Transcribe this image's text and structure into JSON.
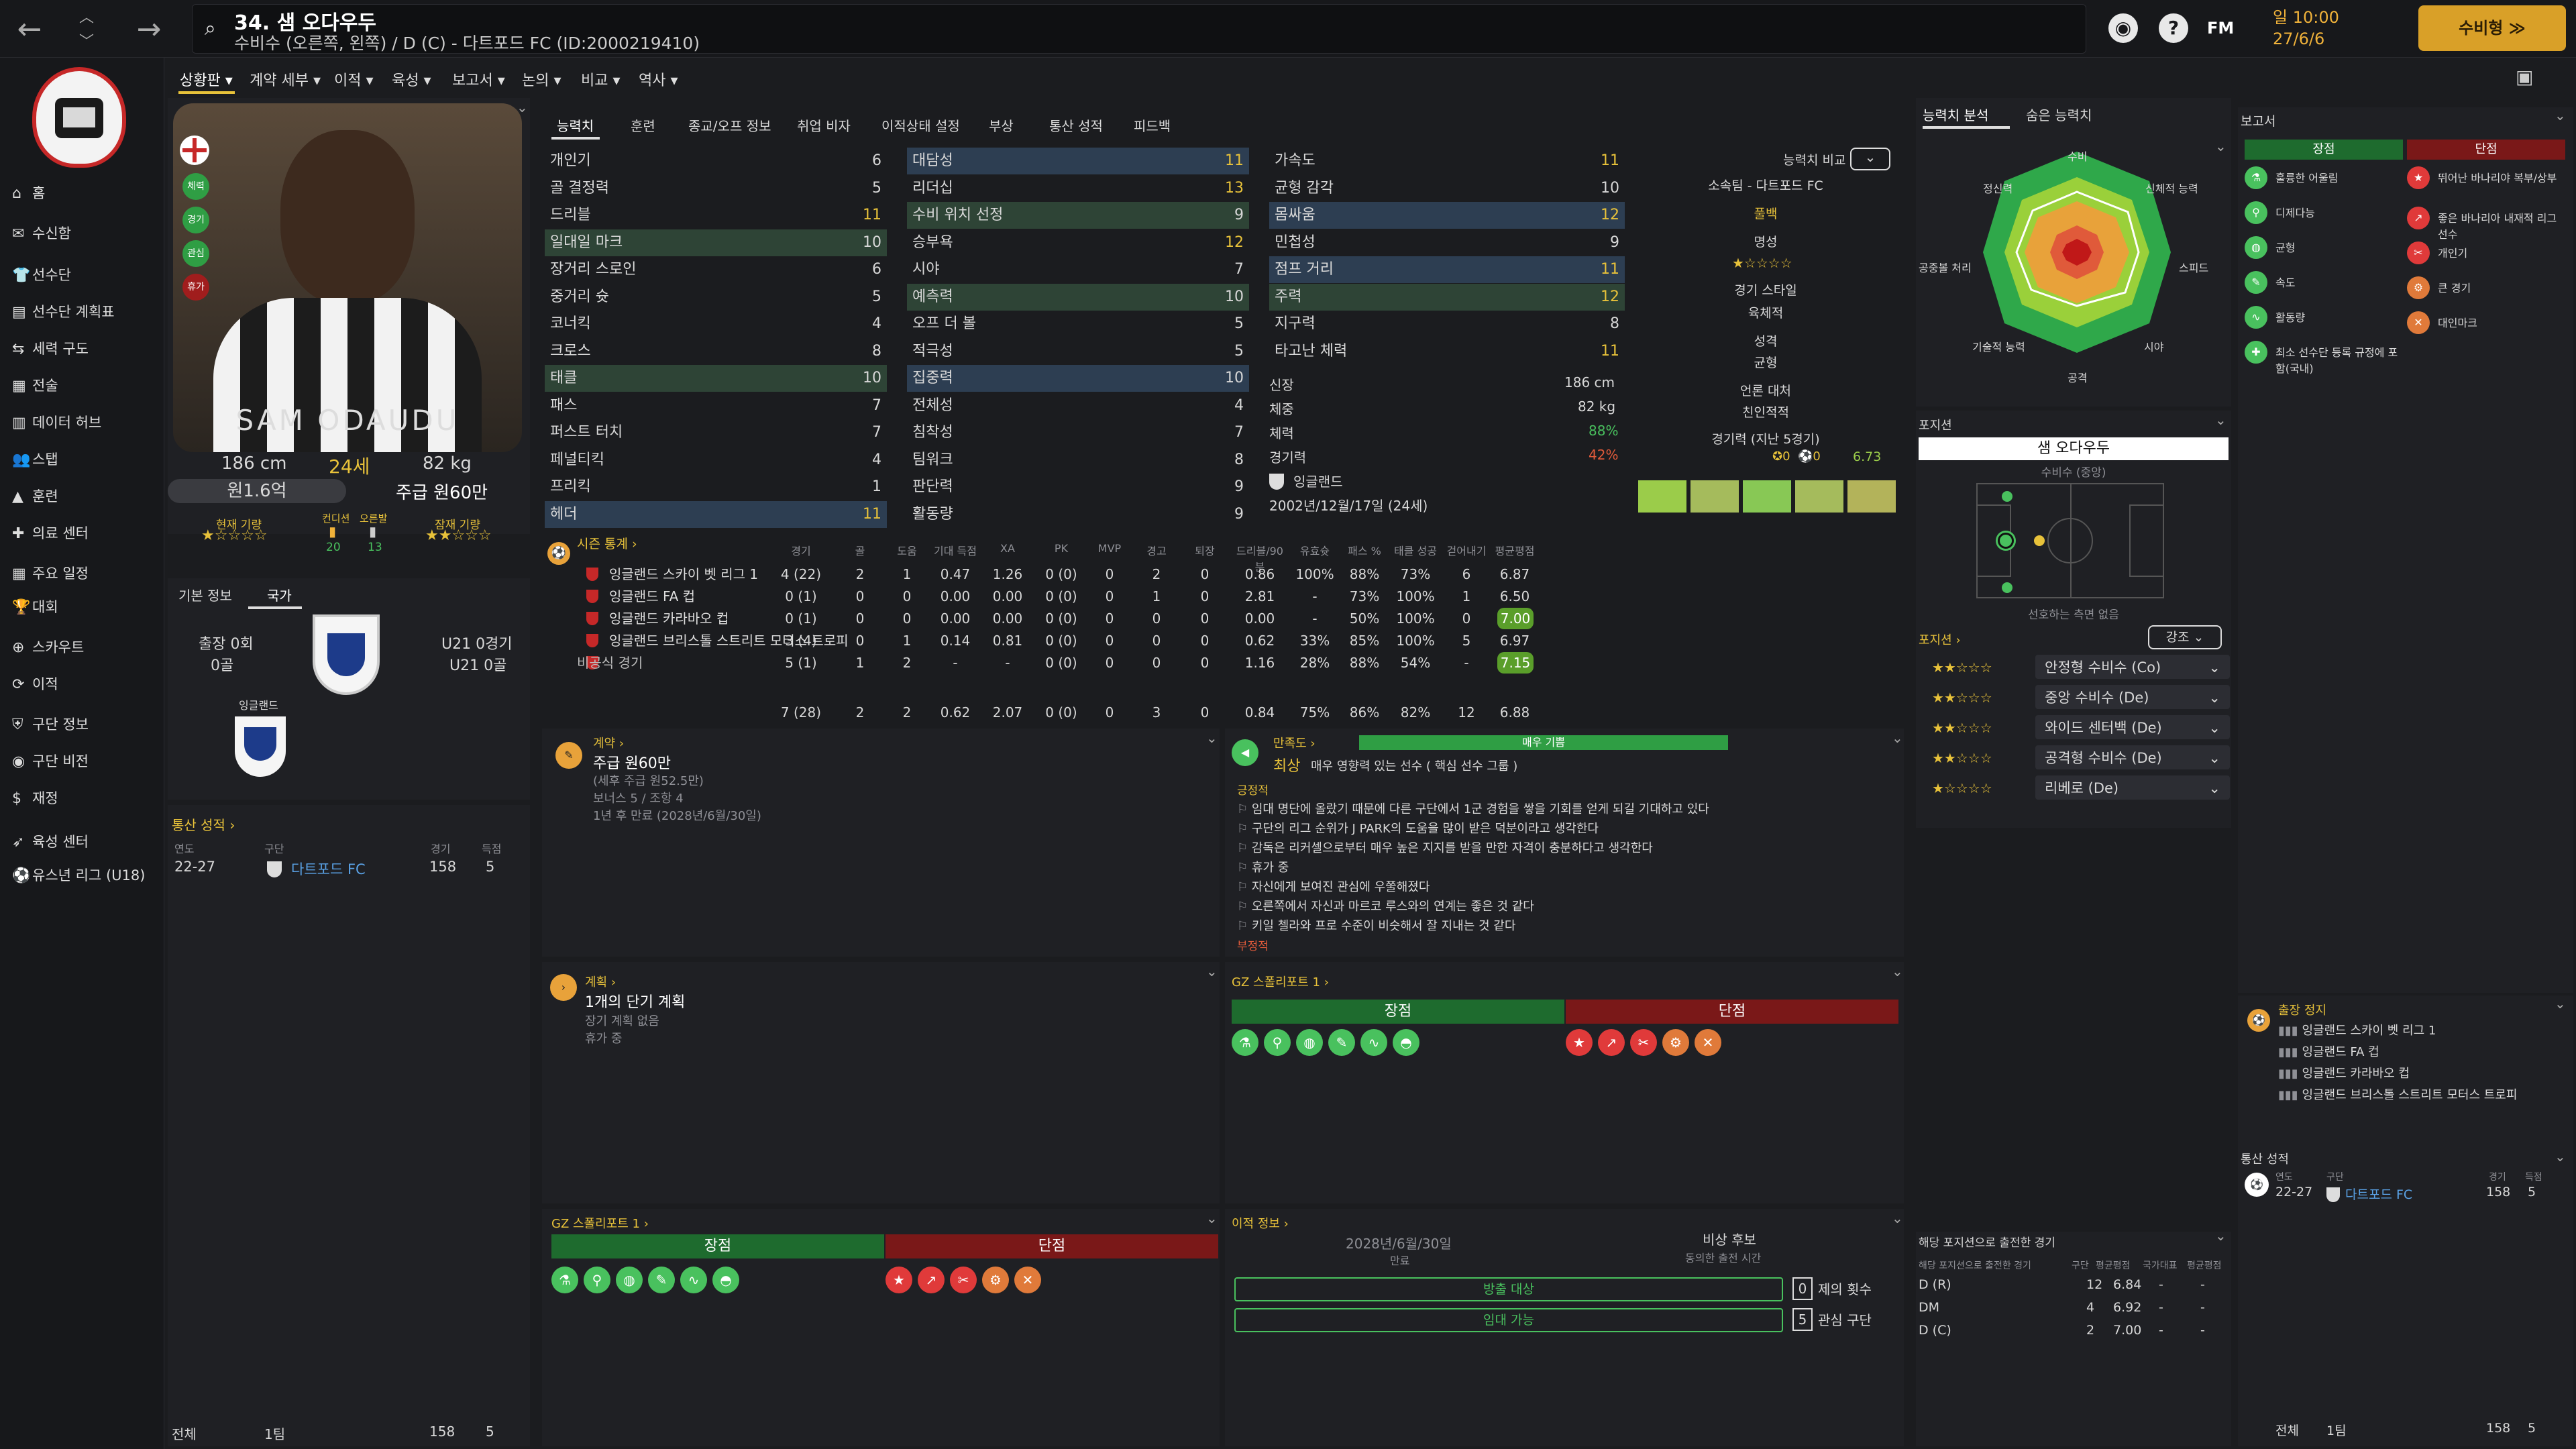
{
  "header": {
    "player_name": "34. 샘 오다우두",
    "player_desc": "수비수 (오른쪽, 왼쪽) / D (C) - 다트포드 FC (ID:2000219410)",
    "fm_label": "FM",
    "date_day": "일 10:00",
    "date": "27/6/6",
    "continue_label": "수비형 ≫"
  },
  "sidebar": {
    "items": [
      {
        "label": "홈",
        "icon": "⌂"
      },
      {
        "label": "수신함",
        "icon": "✉"
      },
      {
        "label": "선수단",
        "icon": "👕"
      },
      {
        "label": "선수단 계획표",
        "icon": "▤"
      },
      {
        "label": "세력 구도",
        "icon": "⇆"
      },
      {
        "label": "전술",
        "icon": "▦"
      },
      {
        "label": "데이터 허브",
        "icon": "▥"
      },
      {
        "label": "스탭",
        "icon": "👥"
      },
      {
        "label": "훈련",
        "icon": "▲"
      },
      {
        "label": "의료 센터",
        "icon": "✚"
      },
      {
        "label": "주요 일정",
        "icon": "▦"
      },
      {
        "label": "대회",
        "icon": "🏆"
      },
      {
        "label": "스카우트",
        "icon": "⊕"
      },
      {
        "label": "이적",
        "icon": "⟳"
      },
      {
        "label": "구단 정보",
        "icon": "⛨"
      },
      {
        "label": "구단 비전",
        "icon": "◉"
      },
      {
        "label": "재정",
        "icon": "$"
      },
      {
        "label": "육성 센터",
        "icon": "➶"
      },
      {
        "label": "유스년 리그 (U18)",
        "icon": "⚽"
      }
    ]
  },
  "subtabs": [
    "상황판 ▾",
    "계약 세부 ▾",
    "이적 ▾",
    "육성 ▾",
    "보고서 ▾",
    "논의 ▾",
    "비교 ▾",
    "역사 ▾"
  ],
  "profile": {
    "photo_name": "SAM ODAUDU",
    "height": "186 cm",
    "age": "24세",
    "weight": "82 kg",
    "value": "원1.6억",
    "wage": "주급 원60만",
    "current_ability": "현재 기량",
    "condition": "컨디션",
    "sharpness": "오른발",
    "cond_val": "20",
    "sharp_val": "13",
    "potential": "잠재 기량",
    "badges": [
      "체력",
      "경기",
      "관심",
      "휴가"
    ]
  },
  "nation": {
    "tab1": "기본 정보",
    "tab2": "국가",
    "apps": "출장 0회",
    "goals": "0골",
    "u21_apps": "U21 0경기",
    "u21_goals": "U21 0골",
    "nation_name": "잉글랜드"
  },
  "career_left": {
    "title": "통산 성적 ›",
    "h_year": "연도",
    "h_club": "구단",
    "h_apps": "경기",
    "h_goals": "득점",
    "year": "22-27",
    "club": "다트포드 FC",
    "apps": "158",
    "goals": "5",
    "total": "전체",
    "teams": "1팀",
    "total_apps": "158",
    "total_goals": "5"
  },
  "attr_tabs": [
    "능력치",
    "훈련",
    "종교/오프 정보",
    "취업 비자",
    "이적상태 설정",
    "부상",
    "통산 성적",
    "피드백"
  ],
  "attributes": {
    "technical": [
      {
        "n": "개인기",
        "v": "6"
      },
      {
        "n": "골 결정력",
        "v": "5"
      },
      {
        "n": "드리블",
        "v": "11"
      },
      {
        "n": "일대일 마크",
        "v": "10"
      },
      {
        "n": "장거리 스로인",
        "v": "6"
      },
      {
        "n": "중거리 슛",
        "v": "5"
      },
      {
        "n": "코너킥",
        "v": "4"
      },
      {
        "n": "크로스",
        "v": "8"
      },
      {
        "n": "태클",
        "v": "10"
      },
      {
        "n": "패스",
        "v": "7"
      },
      {
        "n": "퍼스트 터치",
        "v": "7"
      },
      {
        "n": "페널티킥",
        "v": "4"
      },
      {
        "n": "프리킥",
        "v": "1"
      },
      {
        "n": "헤더",
        "v": "11"
      }
    ],
    "mental": [
      {
        "n": "대담성",
        "v": "11"
      },
      {
        "n": "리더십",
        "v": "13"
      },
      {
        "n": "수비 위치 선정",
        "v": "9"
      },
      {
        "n": "승부욕",
        "v": "12"
      },
      {
        "n": "시야",
        "v": "7"
      },
      {
        "n": "예측력",
        "v": "10"
      },
      {
        "n": "오프 더 볼",
        "v": "5"
      },
      {
        "n": "적극성",
        "v": "5"
      },
      {
        "n": "집중력",
        "v": "10"
      },
      {
        "n": "전체성",
        "v": "4"
      },
      {
        "n": "침착성",
        "v": "7"
      },
      {
        "n": "팀워크",
        "v": "8"
      },
      {
        "n": "판단력",
        "v": "9"
      },
      {
        "n": "활동량",
        "v": "9"
      }
    ],
    "physical": [
      {
        "n": "가속도",
        "v": "11"
      },
      {
        "n": "균형 감각",
        "v": "10"
      },
      {
        "n": "몸싸움",
        "v": "12"
      },
      {
        "n": "민첩성",
        "v": "9"
      },
      {
        "n": "점프 거리",
        "v": "11"
      },
      {
        "n": "주력",
        "v": "12"
      },
      {
        "n": "지구력",
        "v": "8"
      },
      {
        "n": "타고난 체력",
        "v": "11"
      }
    ]
  },
  "info": {
    "compare": "능력치 비교",
    "club": "소속팀 - 다트포드 FC",
    "role": "풀백",
    "rep": "명성",
    "style": "경기 스타일",
    "style_val": "육체적",
    "personality": "성격",
    "personality_val": "균형",
    "media": "언론 대처",
    "media_val": "친인적적",
    "recent": "경기력 (지난 5경기)",
    "rating": "6.73",
    "height_l": "신장",
    "height_v": "186 cm",
    "weight_l": "체중",
    "weight_v": "82 kg",
    "fitness_l": "체력",
    "fitness_v": "88%",
    "match_l": "경기력",
    "match_v": "42%",
    "nationality": "잉글랜드",
    "dob": "2002년/12월/17일 (24세)"
  },
  "stats": {
    "title": "시즌 통계 ›",
    "headers": [
      "경기",
      "골",
      "도움",
      "기대 득점",
      "XA",
      "PK",
      "MVP",
      "경고",
      "퇴장",
      "드리블/90분",
      "유효슛",
      "패스 %",
      "태클 성공",
      "걷어내기",
      "평균평점"
    ],
    "rows": [
      {
        "c": "잉글랜드 스카이 벳 리그 1",
        "v": [
          "4 (22)",
          "2",
          "1",
          "0.47",
          "1.26",
          "0 (0)",
          "0",
          "2",
          "0",
          "0.86",
          "100%",
          "88%",
          "73%",
          "6",
          "6.87"
        ]
      },
      {
        "c": "잉글랜드 FA 컵",
        "v": [
          "0 (1)",
          "0",
          "0",
          "0.00",
          "0.00",
          "0 (0)",
          "0",
          "1",
          "0",
          "2.81",
          "-",
          "73%",
          "100%",
          "1",
          "6.50"
        ]
      },
      {
        "c": "잉글랜드 카라바오 컵",
        "v": [
          "0 (1)",
          "0",
          "0",
          "0.00",
          "0.00",
          "0 (0)",
          "0",
          "0",
          "0",
          "0.00",
          "-",
          "50%",
          "100%",
          "0",
          "7.00"
        ]
      },
      {
        "c": "잉글랜드 브리스톨 스트리트 모터스 트로피",
        "v": [
          "3 (4)",
          "0",
          "1",
          "0.14",
          "0.81",
          "0 (0)",
          "0",
          "0",
          "0",
          "0.62",
          "33%",
          "85%",
          "100%",
          "5",
          "6.97"
        ]
      },
      {
        "c": "비공식 경기",
        "v": [
          "5 (1)",
          "1",
          "2",
          "-",
          "-",
          "0 (0)",
          "0",
          "0",
          "0",
          "1.16",
          "28%",
          "88%",
          "54%",
          "-",
          "7.15"
        ]
      }
    ],
    "total": [
      "7 (28)",
      "2",
      "2",
      "0.62",
      "2.07",
      "0 (0)",
      "0",
      "3",
      "0",
      "0.84",
      "75%",
      "86%",
      "82%",
      "12",
      "6.88"
    ]
  },
  "contract": {
    "title": "계약 ›",
    "wage": "주급 원60만",
    "detail": "(세후 주급 원52.5만)",
    "bonus": "보너스 5 / 조항 4",
    "expiry": "1년 후 만료 (2028년/6월/30일)"
  },
  "satisfaction": {
    "title": "만족도 ›",
    "bar": "매우 기쁨",
    "status": "최상",
    "desc": "매우 영향력 있는 선수 ( 핵심 선수 그룹 )",
    "positive": "긍정적",
    "items": [
      "임대 명단에 올랐기 때문에 다른 구단에서 1군 경험을 쌓을 기회를 얻게 되길 기대하고 있다",
      "구단의 리그 순위가 J PARK의 도움을 많이 받은 덕분이라고 생각한다",
      "감독은 리커셀으로부터 매우 높은 지지를 받을 만한 자격이 충분하다고 생각한다",
      "휴가 중",
      "자신에게 보여진 관심에 우쭐해졌다",
      "오른쪽에서 자신과 마르코 루스와의 연계는 좋은 것 같다",
      "키일 첼라와 프로 수준이 비슷해서 잘 지내는 것 같다"
    ],
    "negative": "부정적"
  },
  "plan": {
    "title": "계획 ›",
    "main": "1개의 단기 계획",
    "l1": "장기 계획 없음",
    "l2": "휴가 중"
  },
  "scout1": {
    "title": "GZ 스폴리포트 1 ›",
    "strengths": "장점",
    "weaknesses": "단점"
  },
  "scout2": {
    "title": "GZ 스폴리포트 1 ›",
    "strengths": "장점",
    "weaknesses": "단점"
  },
  "transfer": {
    "title": "이적 정보 ›",
    "expiry": "2028년/6월/30일",
    "expiry_l": "만료",
    "status": "비상 후보",
    "status_l": "동의한 출전 시간",
    "offer": "방출 대상",
    "loan": "임대 가능",
    "n1": "0",
    "n1_l": "제의 횟수",
    "n2": "5",
    "n2_l": "관심 구단"
  },
  "analysis": {
    "tab1": "능력치 분석",
    "tab2": "숨은 능력치",
    "labels": [
      "수비",
      "신체적 능력",
      "스피드",
      "시야",
      "공격",
      "기술적 능력",
      "공중볼 처리",
      "정신력"
    ]
  },
  "position": {
    "title": "포지션",
    "name": "샘 오다우두",
    "role": "수비수 (중앙)",
    "note": "선호하는 측면 없음",
    "list_title": "포지션 ›",
    "focus": "강조",
    "roles": [
      "안정형 수비수 (Co)",
      "중앙 수비수 (De)",
      "와이드 센터백 (De)",
      "공격형 수비수 (De)",
      "리베로 (De)"
    ]
  },
  "pos_apps": {
    "title": "해당 포지션으로 출전한 경기",
    "h": [
      "해당 포지션으로 출전한 경기",
      "구단",
      "평균평점",
      "국가대표",
      "평균평점"
    ],
    "rows": [
      {
        "p": "D (R)",
        "a": "12",
        "r": "6.84"
      },
      {
        "p": "DM",
        "a": "4",
        "r": "6.92"
      },
      {
        "p": "D (C)",
        "a": "2",
        "r": "7.00"
      }
    ]
  },
  "report": {
    "title": "보고서",
    "strengths": "장점",
    "weaknesses": "단점",
    "s_items": [
      "훌륭한 어울림",
      "디제다능",
      "균형",
      "속도",
      "활동량",
      "최소 선수단 등록 규정에 포함(국내)"
    ],
    "w_items": [
      "뛰어난 바나리야 복부/상부",
      "좋은 바나리아 내재적 리그 선수",
      "개인기",
      "큰 경기",
      "대인마크"
    ]
  },
  "suspension": {
    "title": "출장 정지",
    "items": [
      "잉글랜드 스카이 벳 리그 1",
      "잉글랜드 FA 컵",
      "잉글랜드 카라바오 컵",
      "잉글랜드 브리스톨 스트리트 모터스 트로피"
    ]
  },
  "career_right": {
    "title": "통산 성적",
    "year": "22-27",
    "club": "다트포드 FC",
    "apps": "158",
    "goals": "5",
    "total": "전체",
    "teams": "1팀",
    "total_apps": "158",
    "total_goals": "5",
    "h_year": "연도",
    "h_club": "구단",
    "h_apps": "경기",
    "h_goals": "득점"
  },
  "colors": {
    "accent": "#e8c23a",
    "green": "#2f9e44",
    "red": "#a01d1d",
    "highlight": "#2d3e52"
  }
}
